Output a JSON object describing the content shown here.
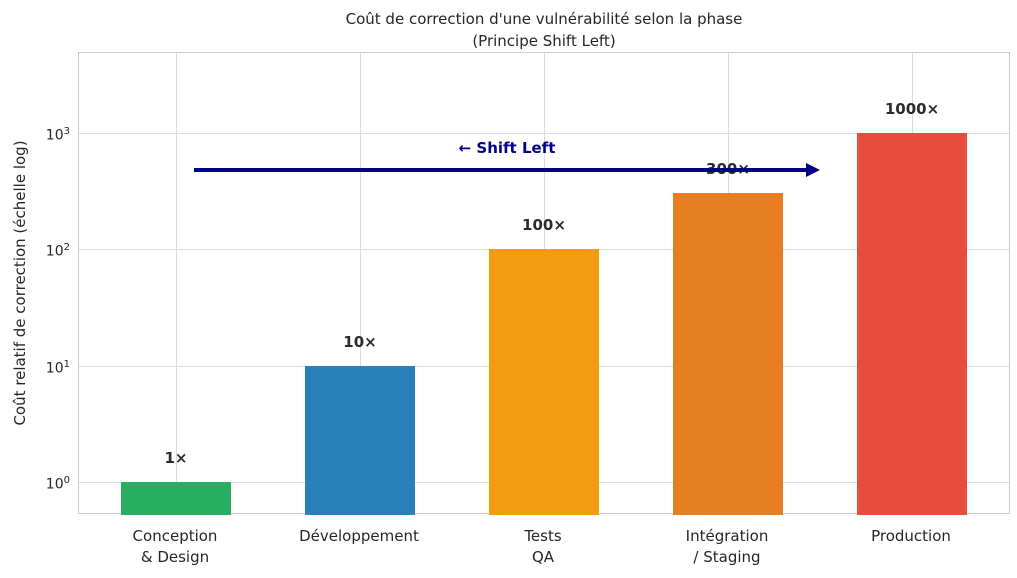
{
  "title": "Coût de correction d'une vulnérabilité selon la phase\n(Principe Shift Left)",
  "ylabel": "Coût relatif de correction (échelle log)",
  "annotation": {
    "label": "← Shift Left",
    "color": "#00008b"
  },
  "chart_data": {
    "type": "bar",
    "title": "Coût de correction d'une vulnérabilité selon la phase (Principe Shift Left)",
    "xlabel": "",
    "ylabel": "Coût relatif de correction (échelle log)",
    "yscale": "log",
    "ylim": [
      0.5,
      5000
    ],
    "yticks": [
      1,
      10,
      100,
      1000
    ],
    "grid": true,
    "categories": [
      "Conception\n& Design",
      "Développement",
      "Tests\nQA",
      "Intégration\n/ Staging",
      "Production"
    ],
    "values": [
      1,
      10,
      100,
      300,
      1000
    ],
    "bar_labels": [
      "1×",
      "10×",
      "100×",
      "300×",
      "1000×"
    ],
    "bar_colors": [
      "#27ae60",
      "#2980b9",
      "#f39c12",
      "#e67e22",
      "#e74c3c"
    ],
    "annotation": "← Shift Left"
  }
}
